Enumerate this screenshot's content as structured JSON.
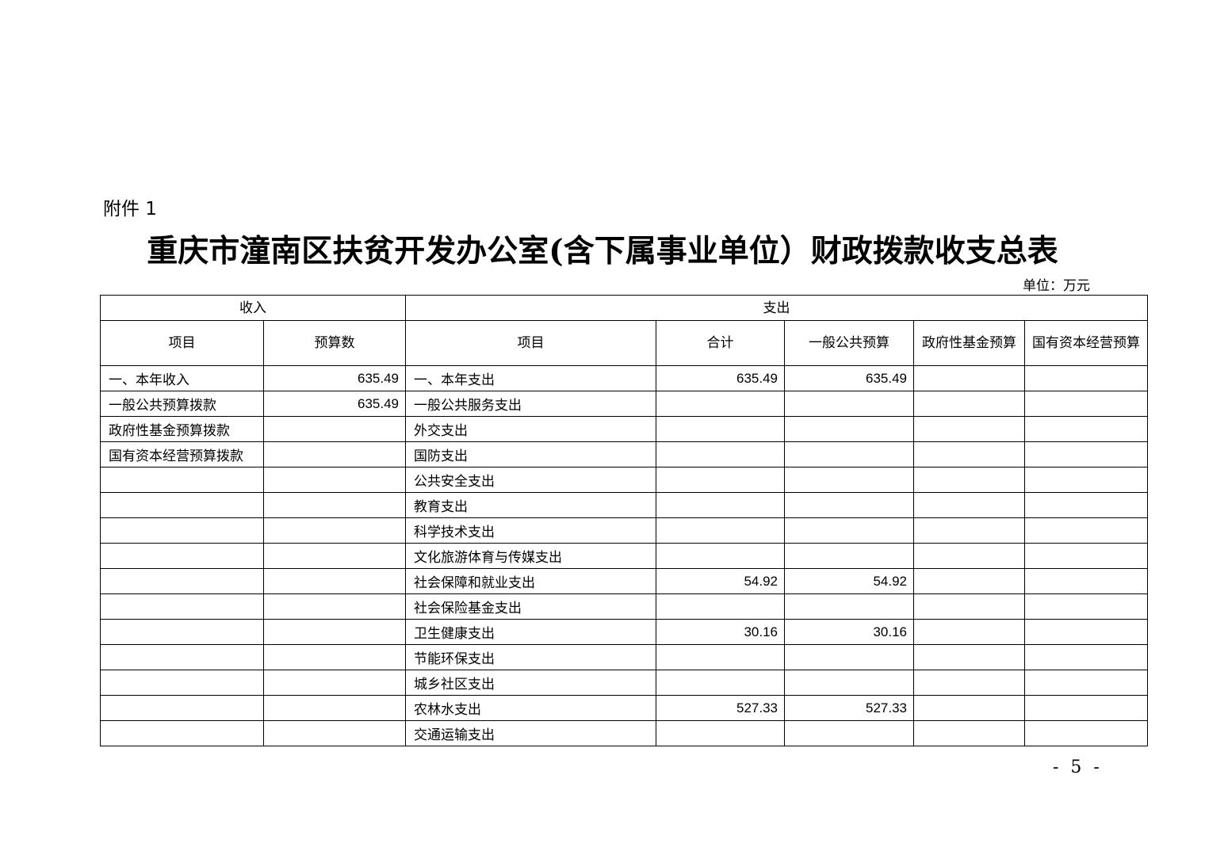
{
  "attachment_label": "附件 1",
  "title": "重庆市潼南区扶贫开发办公室(含下属事业单位）财政拨款收支总表",
  "unit": "单位：万元",
  "table": {
    "group_headers": {
      "income": "收入",
      "expenditure": "支出"
    },
    "columns": [
      "项目",
      "预算数",
      "项目",
      "合计",
      "一般公共预算",
      "政府性基金预算",
      "国有资本经营预算"
    ],
    "rows": [
      [
        "一、本年收入",
        "635.49",
        "一、本年支出",
        "635.49",
        "635.49",
        "",
        ""
      ],
      [
        "一般公共预算拨款",
        "635.49",
        "一般公共服务支出",
        "",
        "",
        "",
        ""
      ],
      [
        "政府性基金预算拨款",
        "",
        "外交支出",
        "",
        "",
        "",
        ""
      ],
      [
        "国有资本经营预算拨款",
        "",
        "国防支出",
        "",
        "",
        "",
        ""
      ],
      [
        "",
        "",
        "公共安全支出",
        "",
        "",
        "",
        ""
      ],
      [
        "",
        "",
        "教育支出",
        "",
        "",
        "",
        ""
      ],
      [
        "",
        "",
        "科学技术支出",
        "",
        "",
        "",
        ""
      ],
      [
        "",
        "",
        "文化旅游体育与传媒支出",
        "",
        "",
        "",
        ""
      ],
      [
        "",
        "",
        "社会保障和就业支出",
        "54.92",
        "54.92",
        "",
        ""
      ],
      [
        "",
        "",
        "社会保险基金支出",
        "",
        "",
        "",
        ""
      ],
      [
        "",
        "",
        "卫生健康支出",
        "30.16",
        "30.16",
        "",
        ""
      ],
      [
        "",
        "",
        "节能环保支出",
        "",
        "",
        "",
        ""
      ],
      [
        "",
        "",
        "城乡社区支出",
        "",
        "",
        "",
        ""
      ],
      [
        "",
        "",
        "农林水支出",
        "527.33",
        "527.33",
        "",
        ""
      ],
      [
        "",
        "",
        "交通运输支出",
        "",
        "",
        "",
        ""
      ]
    ]
  },
  "page_number": "- 5 -"
}
